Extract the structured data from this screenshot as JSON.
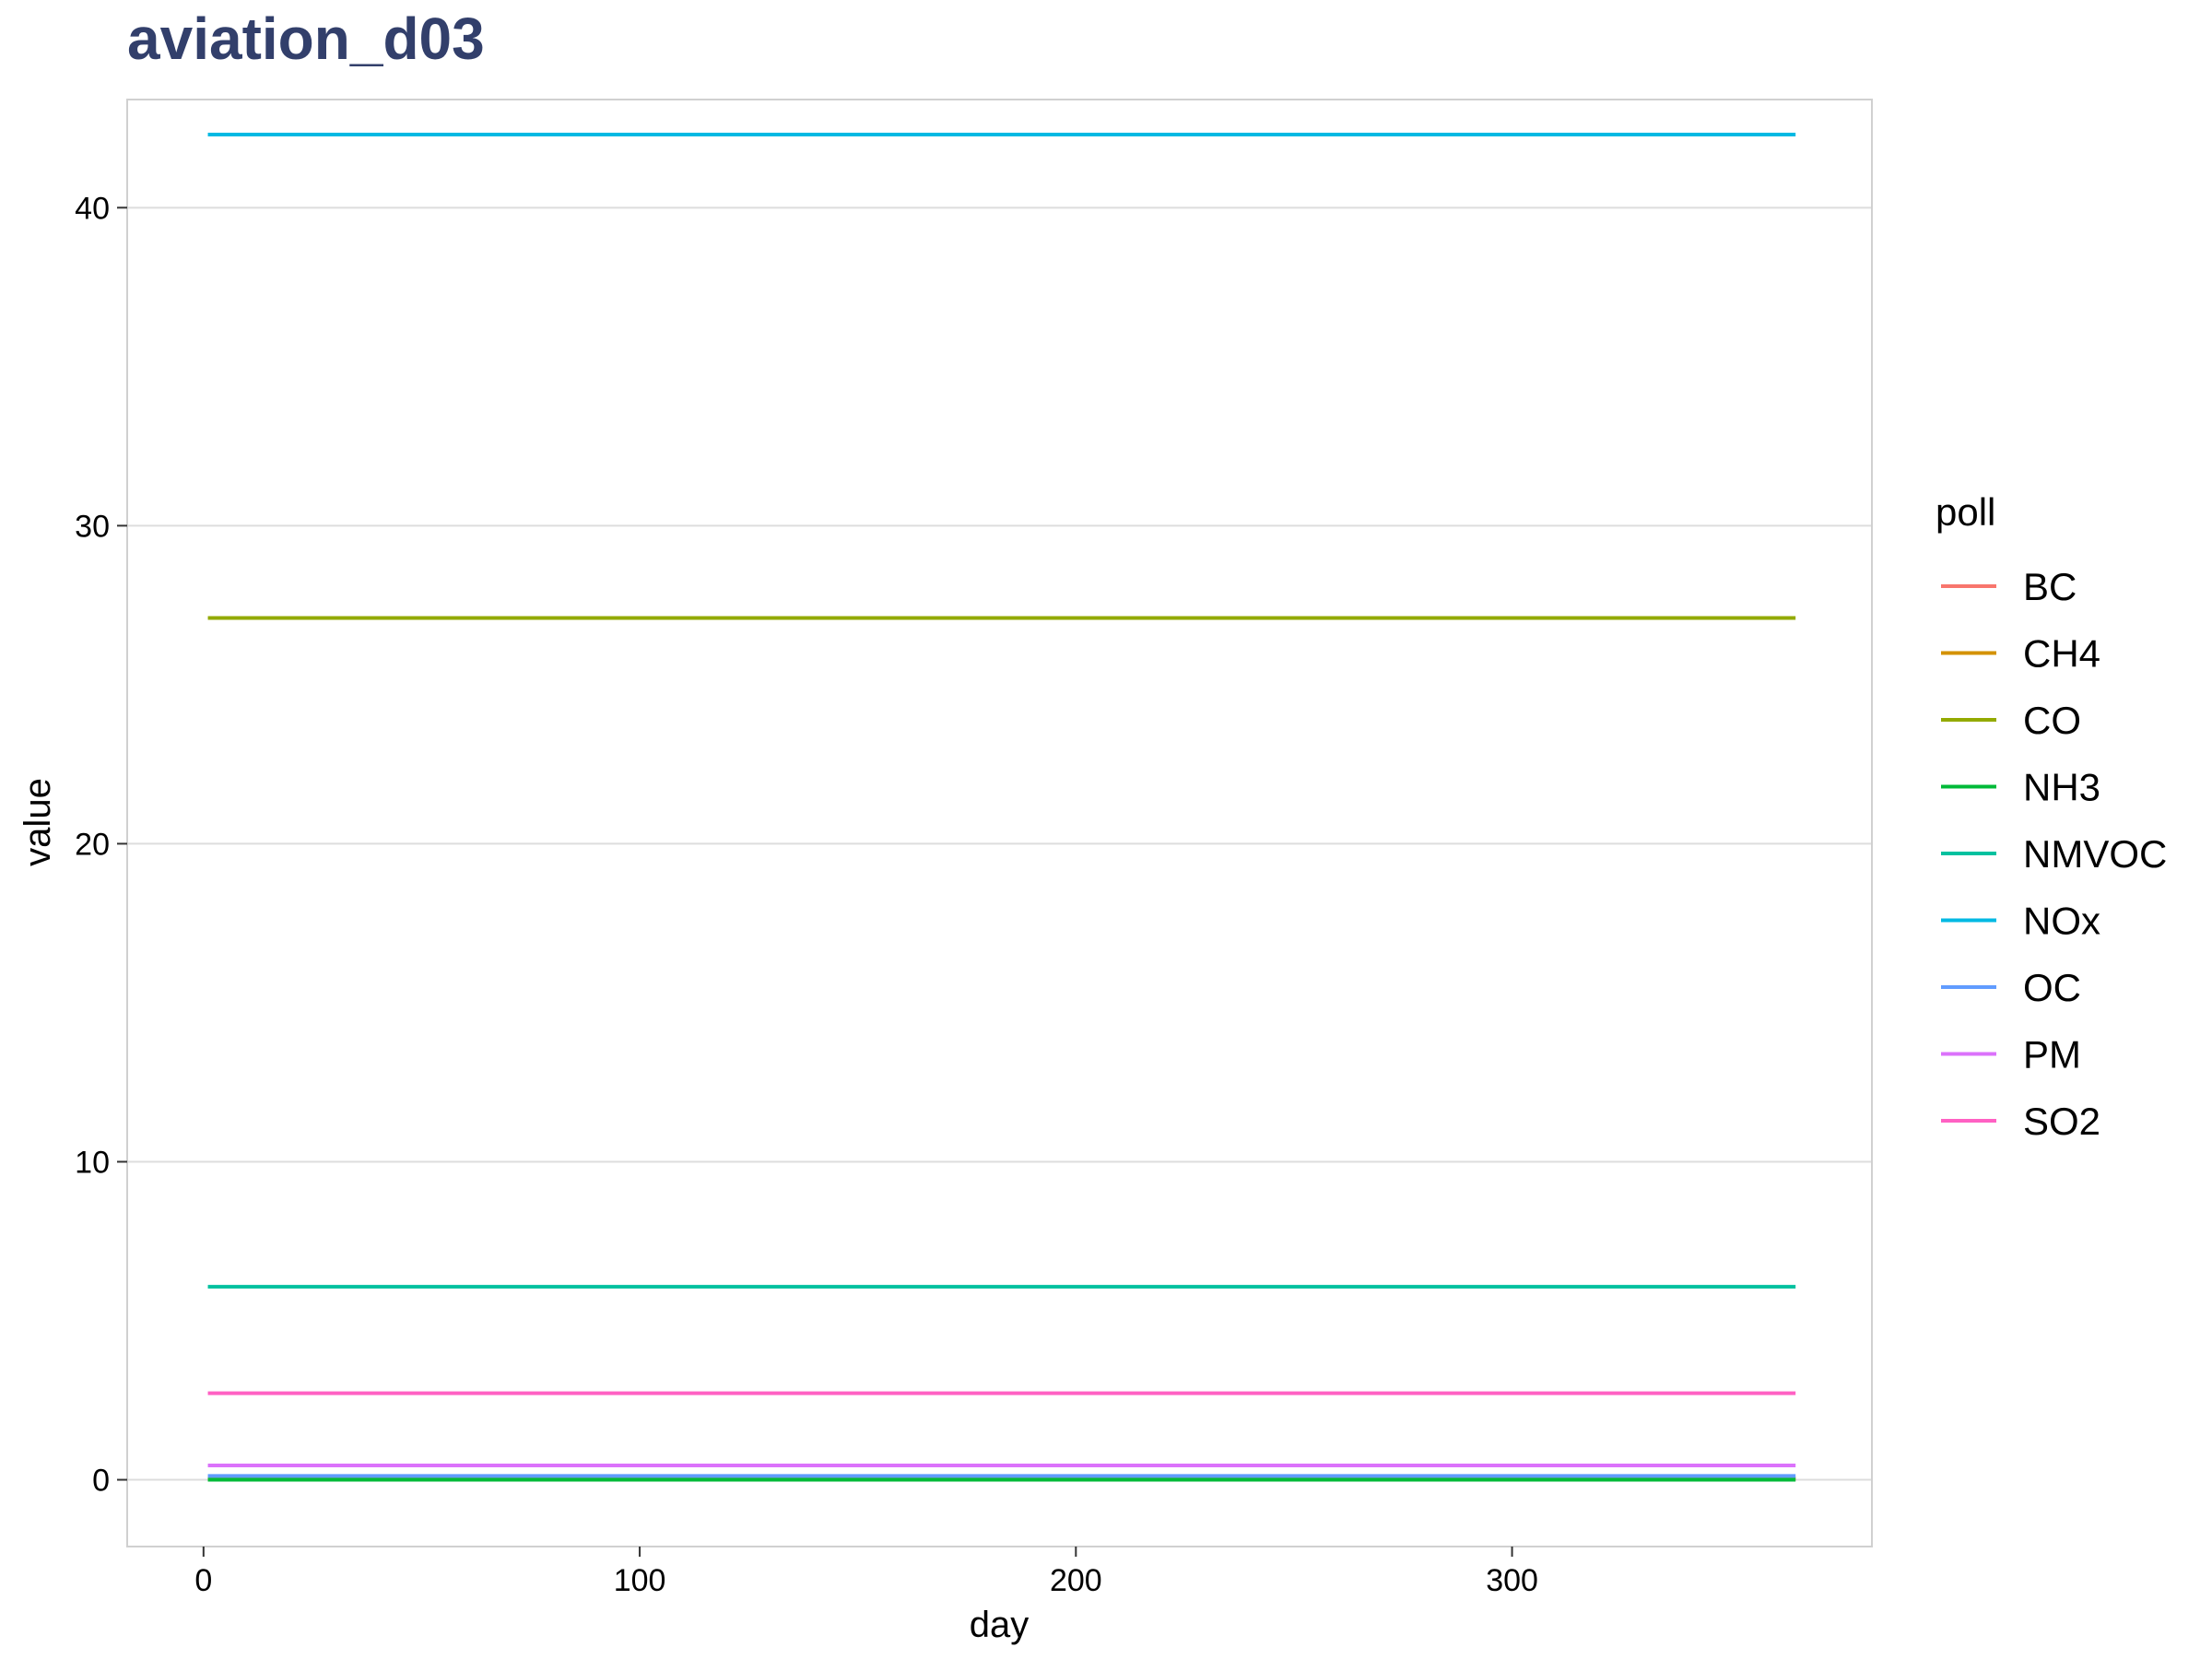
{
  "chart_data": {
    "type": "line",
    "title": "aviation_d03",
    "xlabel": "day",
    "ylabel": "value",
    "xlim": [
      -17.5,
      382.5
    ],
    "ylim": [
      -2.1,
      43.4
    ],
    "x_ticks": [
      0,
      100,
      200,
      300
    ],
    "y_ticks": [
      0,
      10,
      20,
      30,
      40
    ],
    "x_range": [
      1,
      365
    ],
    "grid": true,
    "legend": {
      "title": "poll",
      "position": "right"
    },
    "series": [
      {
        "name": "BC",
        "color": "#F8766D",
        "value": 0.02
      },
      {
        "name": "CH4",
        "color": "#D39200",
        "value": 0.05
      },
      {
        "name": "CO",
        "color": "#93AA00",
        "value": 27.1
      },
      {
        "name": "NH3",
        "color": "#00BA38",
        "value": 0.0
      },
      {
        "name": "NMVOC",
        "color": "#00C19F",
        "value": 6.07
      },
      {
        "name": "NOx",
        "color": "#00B9E3",
        "value": 42.3
      },
      {
        "name": "OC",
        "color": "#619CFF",
        "value": 0.12
      },
      {
        "name": "PM",
        "color": "#DB72FB",
        "value": 0.45
      },
      {
        "name": "SO2",
        "color": "#FF61C3",
        "value": 2.72
      }
    ]
  },
  "colors": {
    "title": "#323F6B",
    "grid": "#DDDDDD",
    "panel_border": "#D0D0D0",
    "tick": "#333333"
  }
}
